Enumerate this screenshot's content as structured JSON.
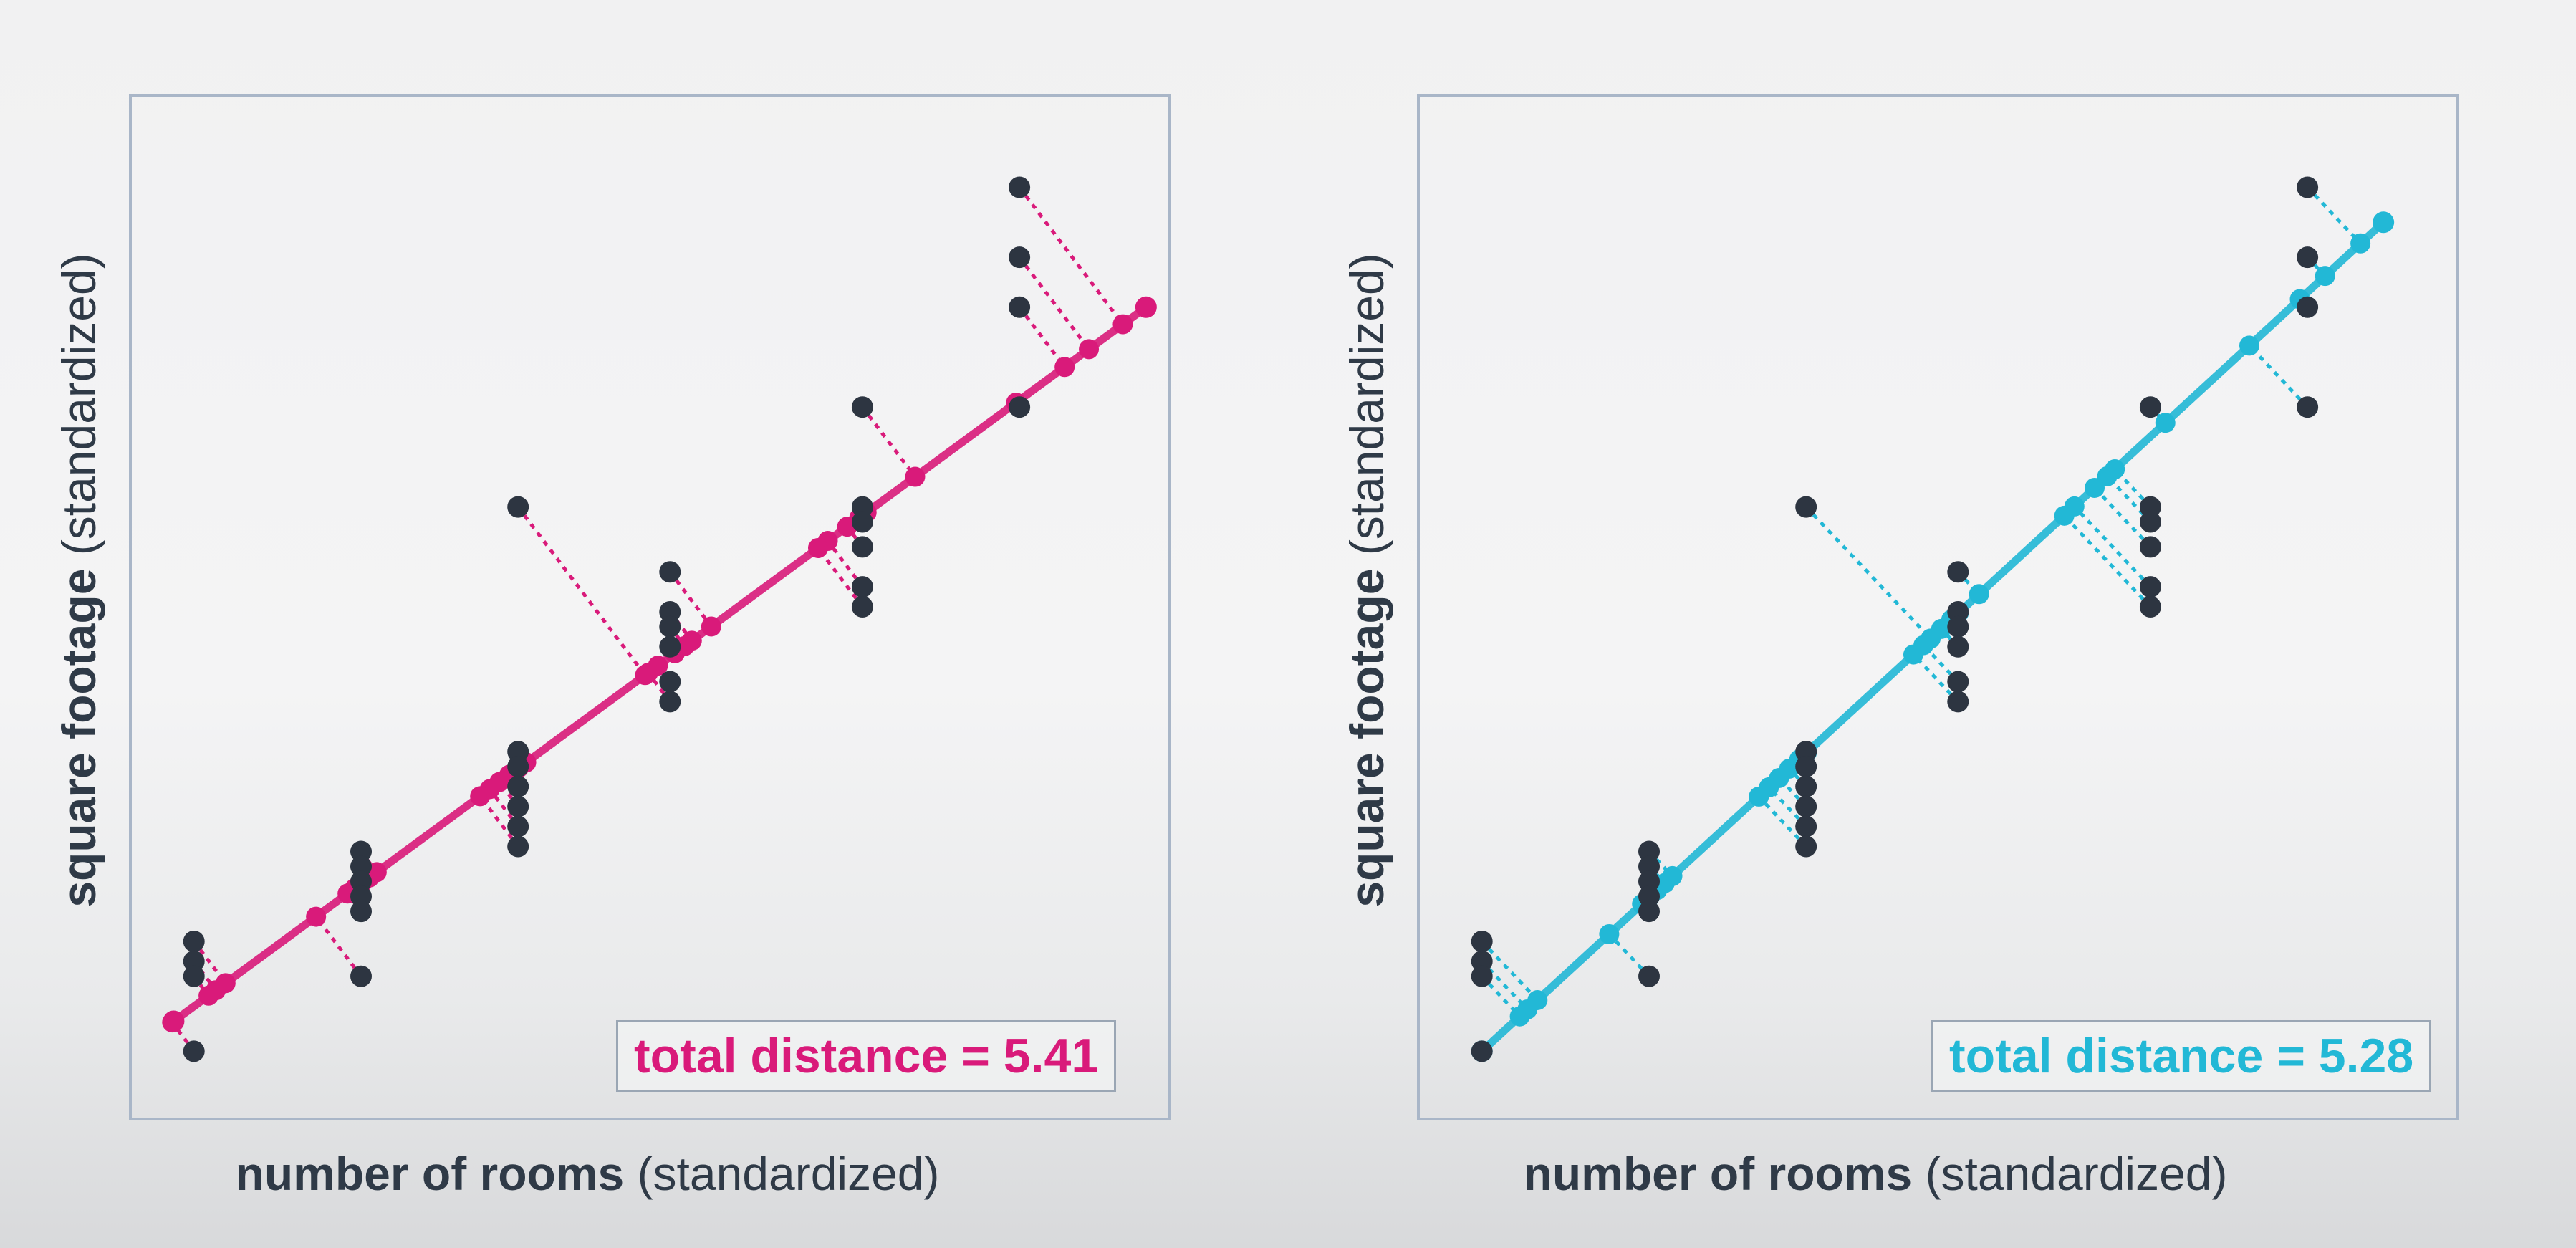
{
  "colors": {
    "axes": "#a9b6c8",
    "points": "#2d3541",
    "text": "#2f3a47"
  },
  "chart_data": [
    {
      "type": "scatter",
      "xlabel_bold": "number of rooms",
      "xlabel_rest": "(standardized)",
      "ylabel_bold": "square footage",
      "ylabel_rest": "(standardized)",
      "annotation": "total distance = 5.41",
      "color": "#d91a7a",
      "xlim": [
        0,
        10
      ],
      "ylim": [
        0,
        10
      ],
      "line": {
        "x": [
          0.3,
          9.9
        ],
        "y": [
          0.85,
          8.0
        ]
      },
      "points": {
        "x": [
          0.5,
          0.5,
          0.5,
          0.5,
          2.15,
          2.15,
          2.15,
          2.15,
          2.15,
          2.15,
          3.7,
          3.7,
          3.7,
          3.7,
          3.7,
          3.7,
          3.7,
          5.2,
          5.2,
          5.2,
          5.2,
          5.2,
          5.2,
          7.1,
          7.1,
          7.1,
          7.1,
          7.1,
          7.1,
          8.65,
          8.65,
          8.65,
          8.65
        ],
        "y": [
          1.65,
          1.45,
          1.3,
          0.55,
          2.55,
          2.4,
          2.25,
          2.1,
          1.95,
          1.3,
          3.55,
          3.4,
          3.2,
          3.0,
          2.8,
          2.6,
          6.0,
          5.35,
          4.95,
          4.8,
          4.6,
          4.25,
          4.05,
          7.0,
          6.0,
          5.85,
          5.6,
          5.2,
          5.0,
          9.2,
          8.5,
          8.0,
          7.0
        ]
      }
    },
    {
      "type": "scatter",
      "xlabel_bold": "number of rooms",
      "xlabel_rest": "(standardized)",
      "ylabel_bold": "square footage",
      "ylabel_rest": "(standardized)",
      "annotation": "total distance = 5.28",
      "color": "#22b8d6",
      "xlim": [
        0,
        10
      ],
      "ylim": [
        0,
        10
      ],
      "line": {
        "x": [
          0.5,
          9.4
        ],
        "y": [
          0.55,
          8.85
        ]
      },
      "points": {
        "x": [
          0.5,
          0.5,
          0.5,
          0.5,
          2.15,
          2.15,
          2.15,
          2.15,
          2.15,
          2.15,
          3.7,
          3.7,
          3.7,
          3.7,
          3.7,
          3.7,
          3.7,
          5.2,
          5.2,
          5.2,
          5.2,
          5.2,
          5.2,
          7.1,
          7.1,
          7.1,
          7.1,
          7.1,
          7.1,
          8.65,
          8.65,
          8.65,
          8.65
        ],
        "y": [
          1.65,
          1.45,
          1.3,
          0.55,
          2.55,
          2.4,
          2.25,
          2.1,
          1.95,
          1.3,
          3.55,
          3.4,
          3.2,
          3.0,
          2.8,
          2.6,
          6.0,
          5.35,
          4.95,
          4.8,
          4.6,
          4.25,
          4.05,
          7.0,
          6.0,
          5.85,
          5.6,
          5.2,
          5.0,
          9.2,
          8.5,
          8.0,
          7.0
        ]
      }
    }
  ]
}
